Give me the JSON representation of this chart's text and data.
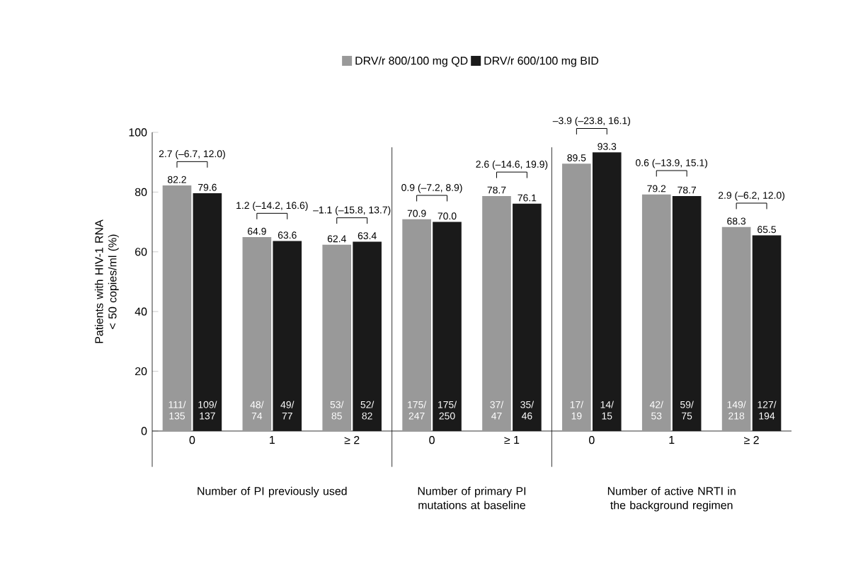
{
  "chart_data": {
    "type": "bar",
    "ylabel": "Patients with HIV-1 RNA < 50 copies/ml (%)",
    "categories": [
      "0",
      "1",
      "≥ 2",
      "0",
      "≥ 1",
      "0",
      "1",
      "≥ 2"
    ],
    "series": [
      {
        "name": "DRV/r 800/100 mg QD",
        "color": "#999999",
        "values": [
          82.2,
          64.9,
          62.4,
          70.9,
          78.7,
          89.5,
          79.2,
          68.3
        ],
        "value_labels": [
          "82.2",
          "64.9",
          "62.4",
          "70.9",
          "78.7",
          "89.5",
          "79.2",
          "68.3"
        ]
      },
      {
        "name": "DRV/r 600/100 mg BID",
        "color": "#1a1a1a",
        "values": [
          79.6,
          63.6,
          63.4,
          70.0,
          76.1,
          93.3,
          78.7,
          65.5
        ],
        "value_labels": [
          "79.6",
          "63.6",
          "63.4",
          "70.0",
          "76.1",
          "93.3",
          "78.7",
          "65.5"
        ]
      }
    ],
    "ylim": [
      0,
      100
    ],
    "yticks": [
      0,
      20,
      40,
      60,
      80,
      100
    ],
    "grid": false,
    "legend": "top",
    "annotations": [
      "111/ 135",
      "109/ 137",
      "48/ 74",
      "49/ 77",
      "53/ 85",
      "52/ 82",
      "175/ 247",
      "175/ 250",
      "37/ 47",
      "35/ 46",
      "17/ 19",
      "14/ 15",
      "42/ 53",
      "59/ 75",
      "149/ 218",
      "127/ 194",
      "2.7 (–6.7, 12.0)",
      "1.2 (–14.2, 16.6)",
      "–1.1 (–15.8, 13.7)",
      "0.9 (–7.2, 8.9)",
      "2.6 (–14.6, 19.9)",
      "–3.9 (–23.8, 16.1)",
      "0.6 (–13.9, 15.1)",
      "2.9 (–6.2, 12.0)",
      "Number of PI previously used",
      "Number of primary PI mutations at baseline",
      "Number of active NRTI in the background regimen"
    ]
  }
}
